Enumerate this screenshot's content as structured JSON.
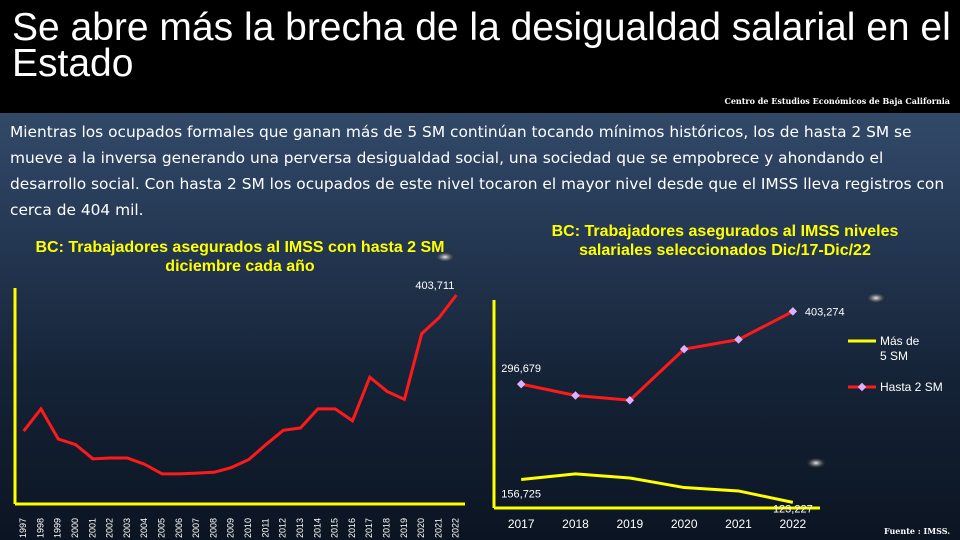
{
  "header": {
    "title": "Se abre más la brecha de la desigualdad salarial en el Estado",
    "source": "Centro de Estudios Económicos de Baja California"
  },
  "paragraph": "Mientras los ocupados formales que ganan más de 5 SM continúan tocando mínimos históricos, los de hasta 2 SM se mueve a la inversa generando una perversa desigualdad social, una sociedad que se empobrece y ahondando el desarrollo social. Con hasta 2 SM los ocupados de este nivel tocaron el mayor nivel desde que el IMSS lleva registros con cerca de 404 mil.",
  "footer": {
    "source": "Fuente : IMSS."
  },
  "colors": {
    "axis": "#ffff00",
    "red_line": "#ff1a1a",
    "yellow_line": "#ffff00",
    "marker": "#e0b0ff"
  },
  "chart_data": [
    {
      "type": "line",
      "title": "BC: Trabajadores asegurados al IMSS con hasta 2  SM diciembre cada año",
      "categories": [
        "1997",
        "1998",
        "1999",
        "2000",
        "2001",
        "2002",
        "2003",
        "2004",
        "2005",
        "2006",
        "2007",
        "2008",
        "2009",
        "2010",
        "2011",
        "2012",
        "2013",
        "2014",
        "2015",
        "2016",
        "2017",
        "2018",
        "2019",
        "2020",
        "2021",
        "2022"
      ],
      "series": [
        {
          "values": [
            232000,
            260000,
            222000,
            215000,
            197000,
            198000,
            198000,
            190000,
            178000,
            178000,
            179000,
            180000,
            186000,
            196000,
            215000,
            233000,
            236000,
            260000,
            260000,
            245000,
            300000,
            282000,
            272000,
            355000,
            375000,
            403711
          ]
        }
      ],
      "ylim": [
        140000,
        410000
      ],
      "labels": [
        {
          "category": "2022",
          "text": "403,711"
        }
      ],
      "grid": false
    },
    {
      "type": "line",
      "title": "BC: Trabajadores asegurados al IMSS niveles salariales seleccionados Dic/17-Dic/22",
      "categories": [
        "2017",
        "2018",
        "2019",
        "2020",
        "2021",
        "2022"
      ],
      "series": [
        {
          "name": "Más de 5 SM",
          "values": [
            156725,
            165000,
            159000,
            145000,
            140000,
            123227
          ]
        },
        {
          "name": "Hasta 2 SM",
          "values": [
            296679,
            280000,
            273000,
            348000,
            362000,
            403274
          ]
        }
      ],
      "ylim": [
        115000,
        420000
      ],
      "labels": [
        {
          "series": "Hasta 2 SM",
          "category": "2017",
          "text": "296,679"
        },
        {
          "series": "Hasta 2 SM",
          "category": "2022",
          "text": "403,274"
        },
        {
          "series": "Más de 5 SM",
          "category": "2017",
          "text": "156,725"
        },
        {
          "series": "Más de 5 SM",
          "category": "2022",
          "text": "123,227"
        }
      ],
      "legend": "right",
      "grid": false
    }
  ]
}
